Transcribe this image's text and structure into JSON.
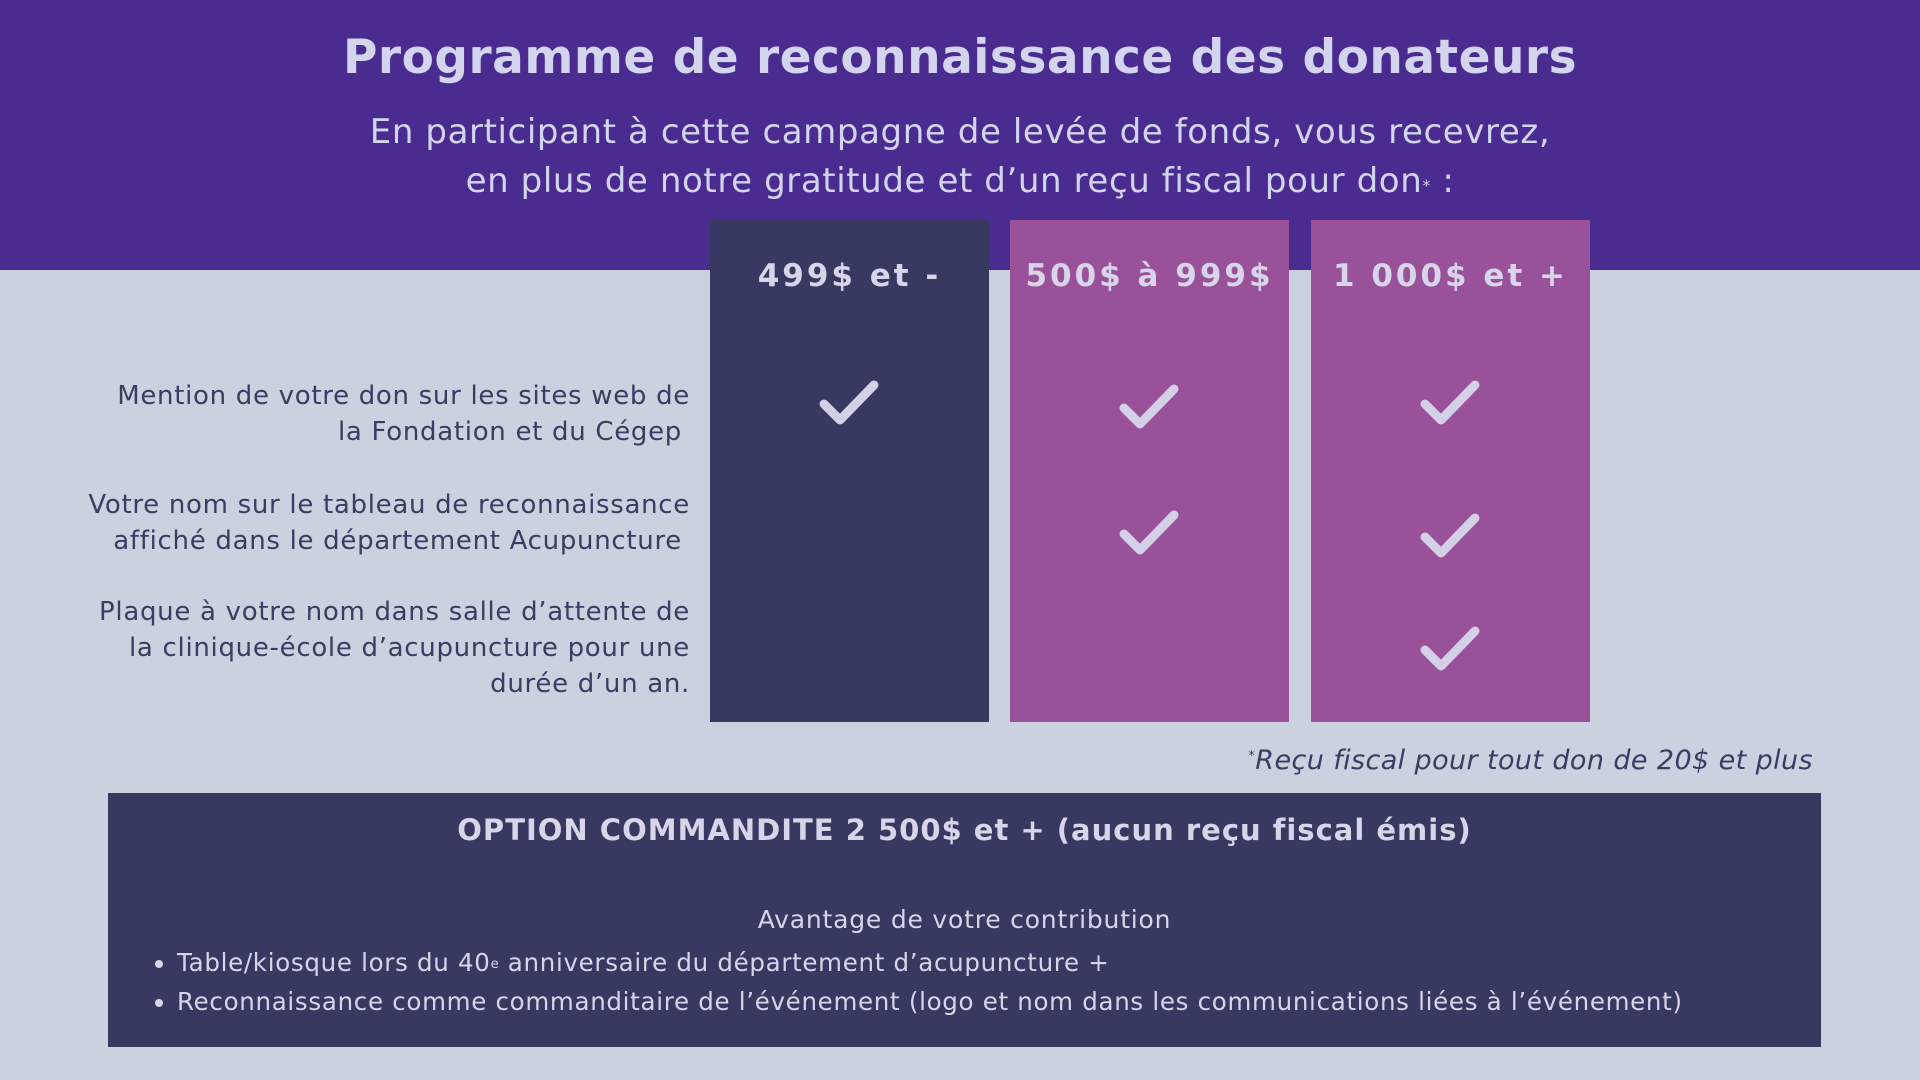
{
  "header": {
    "title": "Programme de reconnaissance des donateurs",
    "subtitle_line1": "En participant à cette campagne de levée de fonds, vous recevrez,",
    "subtitle_line2": "en plus de notre gratitude et d’un reçu fiscal pour don",
    "subtitle_asterisk": "*",
    "subtitle_colon": " :"
  },
  "tiers": [
    {
      "label": "499$ et -",
      "color": "#383960"
    },
    {
      "label": "500$ à 999$",
      "color": "#995299"
    },
    {
      "label": "1 000$ et +",
      "color": "#995299"
    }
  ],
  "benefits": [
    {
      "line1": "Mention de votre don sur les sites web de",
      "line2": "la Fondation et du Cégep",
      "line3": "",
      "tiers_included": [
        "499$ et -",
        "500$ à 999$",
        "1 000$ et +"
      ]
    },
    {
      "line1": "Votre nom sur le tableau de reconnaissance",
      "line2": "affiché dans le département Acupuncture",
      "line3": "",
      "tiers_included": [
        "500$ à 999$",
        "1 000$ et +"
      ]
    },
    {
      "line1": "Plaque à votre nom dans salle d’attente de",
      "line2": "la clinique-école d’acupuncture  pour une",
      "line3": "durée d’un an.",
      "tiers_included": [
        "1 000$ et +"
      ]
    }
  ],
  "check_icon": "checkmark-icon",
  "footnote": {
    "asterisk": "*",
    "text": "Reçu fiscal pour tout don de 20$ et plus"
  },
  "sponsor": {
    "title": "OPTION COMMANDITE 2 500$ et + (aucun reçu fiscal émis)",
    "subtitle": "Avantage de votre contribution",
    "items": [
      {
        "before": "Table/kiosque lors du 40",
        "sup": "e",
        "after": " anniversaire du département d’acupuncture +"
      },
      {
        "before": "Reconnaissance comme commanditaire de l’événement (logo et nom dans les communications liées à l’événement)",
        "sup": "",
        "after": ""
      }
    ]
  },
  "colors": {
    "header_bg": "#4a2c91",
    "page_bg": "#cbd1df",
    "dark_navy": "#383960",
    "purple": "#995299",
    "light_text": "#d3d4ee"
  }
}
